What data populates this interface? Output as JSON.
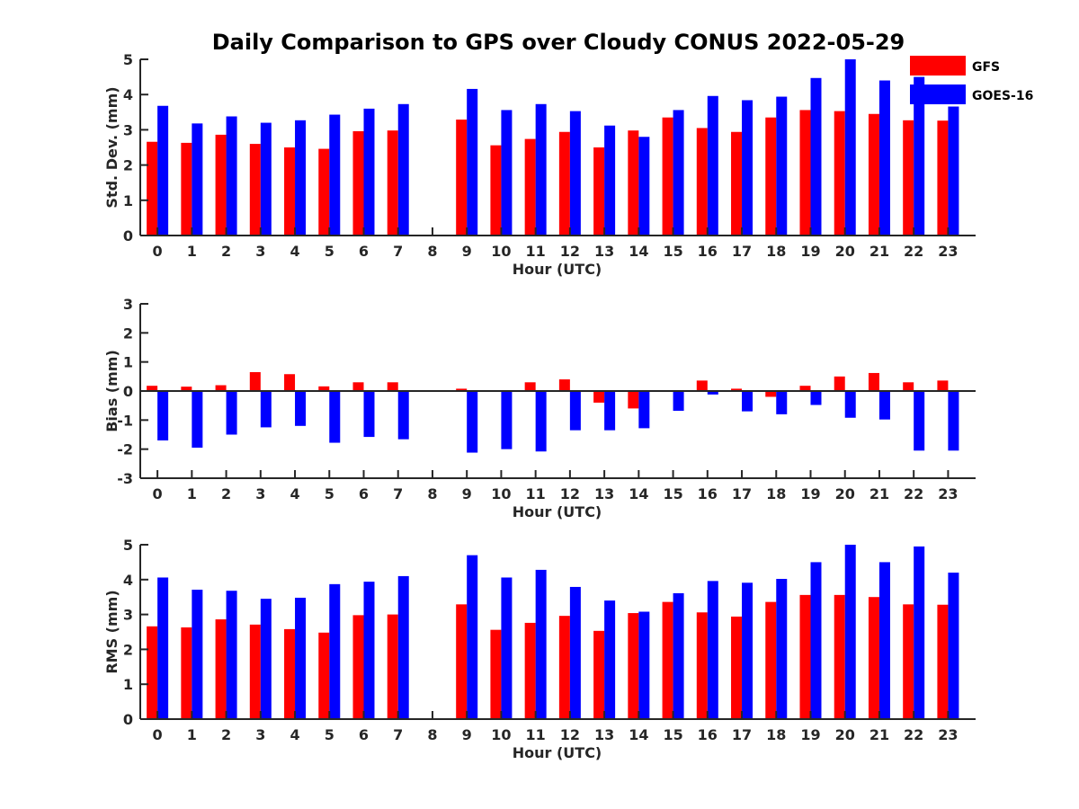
{
  "figure": {
    "title": "Daily Comparison to GPS over Cloudy CONUS 2022-05-29"
  },
  "colors": {
    "GFS": "#ff0000",
    "GOES-16": "#0000ff",
    "axis": "#262626"
  },
  "chart_data": [
    {
      "type": "bar",
      "name": "std-dev",
      "xlabel": "Hour (UTC)",
      "ylabel": "Std. Dev. (mm)",
      "ylim": [
        0,
        5
      ],
      "yticks": [
        0,
        1,
        2,
        3,
        4,
        5
      ],
      "categories": [
        "0",
        "1",
        "2",
        "3",
        "4",
        "5",
        "6",
        "7",
        "8",
        "9",
        "10",
        "11",
        "12",
        "13",
        "14",
        "15",
        "16",
        "17",
        "18",
        "19",
        "20",
        "21",
        "22",
        "23"
      ],
      "legend": {
        "placement": "top-right",
        "entries": [
          "GFS",
          "GOES-16"
        ]
      },
      "series": [
        {
          "name": "GFS",
          "values": [
            2.66,
            2.63,
            2.86,
            2.6,
            2.5,
            2.46,
            2.96,
            2.98,
            null,
            3.29,
            2.56,
            2.74,
            2.94,
            2.5,
            2.98,
            3.35,
            3.05,
            2.94,
            3.35,
            3.56,
            3.53,
            3.45,
            3.27,
            3.26
          ]
        },
        {
          "name": "GOES-16",
          "values": [
            3.68,
            3.18,
            3.38,
            3.2,
            3.27,
            3.43,
            3.6,
            3.73,
            null,
            4.16,
            3.56,
            3.73,
            3.53,
            3.12,
            2.8,
            3.56,
            3.96,
            3.84,
            3.94,
            4.47,
            5.0,
            4.4,
            4.5,
            3.66
          ]
        }
      ]
    },
    {
      "type": "bar",
      "name": "bias",
      "xlabel": "Hour (UTC)",
      "ylabel": "Bias (mm)",
      "ylim": [
        -3,
        3
      ],
      "yticks": [
        -3,
        -2,
        -1,
        0,
        1,
        2,
        3
      ],
      "categories": [
        "0",
        "1",
        "2",
        "3",
        "4",
        "5",
        "6",
        "7",
        "8",
        "9",
        "10",
        "11",
        "12",
        "13",
        "14",
        "15",
        "16",
        "17",
        "18",
        "19",
        "20",
        "21",
        "22",
        "23"
      ],
      "series": [
        {
          "name": "GFS",
          "values": [
            0.18,
            0.15,
            0.2,
            0.65,
            0.58,
            0.16,
            0.3,
            0.3,
            null,
            0.08,
            0.0,
            0.3,
            0.4,
            -0.4,
            -0.6,
            -0.02,
            0.36,
            0.08,
            -0.2,
            0.18,
            0.5,
            0.62,
            0.3,
            0.36
          ]
        },
        {
          "name": "GOES-16",
          "values": [
            -1.7,
            -1.95,
            -1.5,
            -1.25,
            -1.2,
            -1.78,
            -1.58,
            -1.66,
            null,
            -2.12,
            -2.0,
            -2.08,
            -1.35,
            -1.35,
            -1.28,
            -0.68,
            -0.12,
            -0.7,
            -0.8,
            -0.48,
            -0.92,
            -0.98,
            -2.05,
            -2.05
          ]
        }
      ]
    },
    {
      "type": "bar",
      "name": "rms",
      "xlabel": "Hour (UTC)",
      "ylabel": "RMS (mm)",
      "ylim": [
        0,
        5
      ],
      "yticks": [
        0,
        1,
        2,
        3,
        4,
        5
      ],
      "categories": [
        "0",
        "1",
        "2",
        "3",
        "4",
        "5",
        "6",
        "7",
        "8",
        "9",
        "10",
        "11",
        "12",
        "13",
        "14",
        "15",
        "16",
        "17",
        "18",
        "19",
        "20",
        "21",
        "22",
        "23"
      ],
      "series": [
        {
          "name": "GFS",
          "values": [
            2.66,
            2.63,
            2.86,
            2.71,
            2.58,
            2.48,
            2.98,
            3.0,
            null,
            3.29,
            2.56,
            2.76,
            2.96,
            2.53,
            3.04,
            3.36,
            3.06,
            2.94,
            3.36,
            3.56,
            3.56,
            3.5,
            3.29,
            3.28
          ]
        },
        {
          "name": "GOES-16",
          "values": [
            4.06,
            3.71,
            3.68,
            3.45,
            3.48,
            3.87,
            3.94,
            4.1,
            null,
            4.7,
            4.06,
            4.28,
            3.79,
            3.4,
            3.08,
            3.61,
            3.96,
            3.91,
            4.02,
            4.5,
            5.0,
            4.5,
            4.95,
            4.2
          ]
        }
      ]
    }
  ]
}
